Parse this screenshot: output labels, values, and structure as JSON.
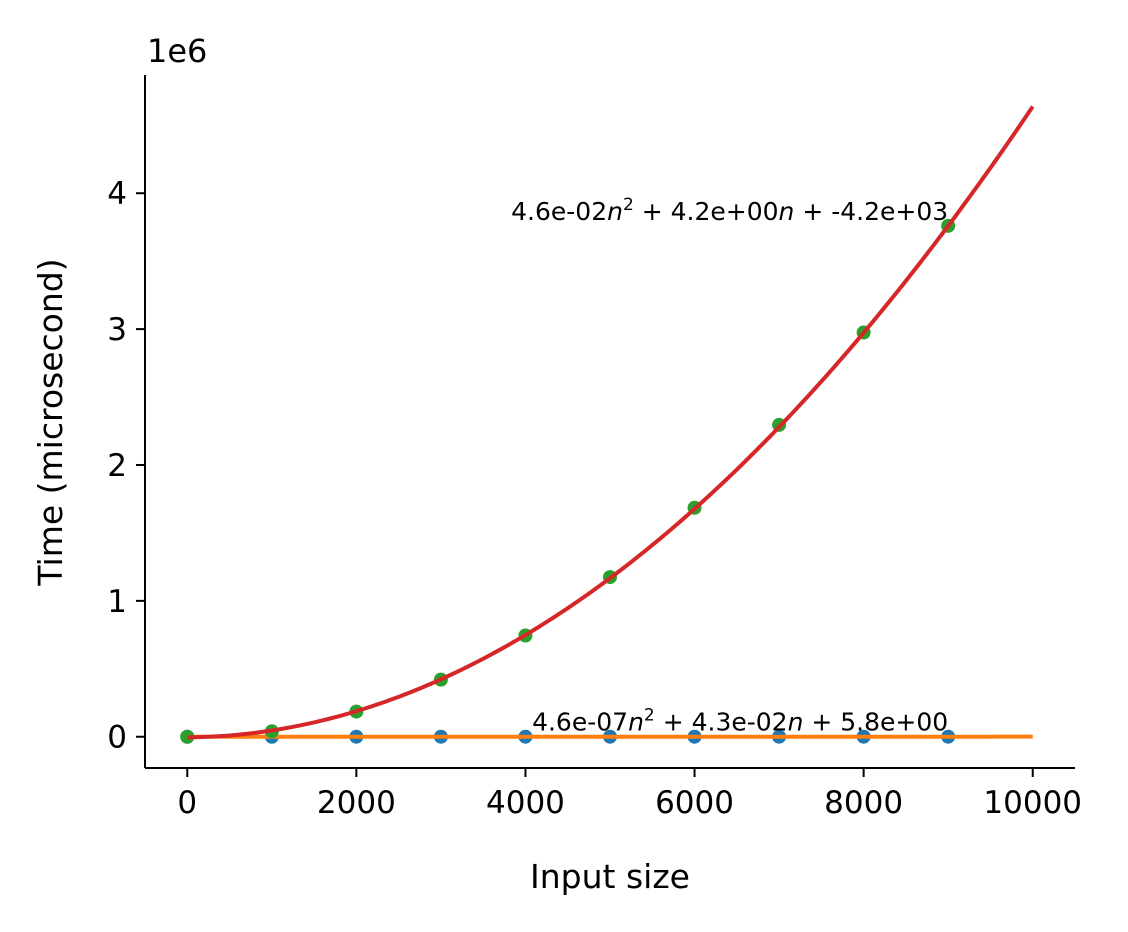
{
  "chart_data": {
    "type": "scatter",
    "title": "",
    "xlabel": "Input size",
    "ylabel": "Time (microsecond)",
    "y_offset_label": "1e6",
    "y_scale_factor": 1000000,
    "xlim": [
      -500,
      10500
    ],
    "ylim": [
      -230000,
      4870000
    ],
    "x_ticks": [
      0,
      2000,
      4000,
      6000,
      8000,
      10000
    ],
    "x_tick_labels": [
      "0",
      "2000",
      "4000",
      "6000",
      "8000",
      "10000"
    ],
    "y_ticks": [
      0,
      1000000,
      2000000,
      3000000,
      4000000
    ],
    "y_tick_labels": [
      "0",
      "1",
      "2",
      "3",
      "4"
    ],
    "grid": false,
    "spines": [
      "left",
      "bottom"
    ],
    "series": [
      {
        "kind": "points",
        "color": "#1f77b4",
        "x": [
          0,
          1000,
          2000,
          3000,
          4000,
          5000,
          6000,
          7000,
          8000,
          9000
        ],
        "y": [
          0,
          50,
          90,
          150,
          200,
          220,
          250,
          320,
          370,
          420
        ]
      },
      {
        "kind": "fit-line",
        "color": "#ff7f0e",
        "coefficients": [
          4.6e-07,
          0.043,
          5.8
        ],
        "x_range": [
          0,
          10000
        ]
      },
      {
        "kind": "points",
        "color": "#2ca02c",
        "x": [
          0,
          1000,
          2000,
          3000,
          4000,
          5000,
          6000,
          7000,
          8000,
          9000
        ],
        "y": [
          0,
          40000,
          185000,
          420000,
          745000,
          1175000,
          1685000,
          2295000,
          2975000,
          3760000
        ]
      },
      {
        "kind": "fit-line",
        "color": "#d62728",
        "coefficients": [
          0.046,
          4.2,
          -4200
        ],
        "x_range": [
          0,
          10000
        ]
      }
    ],
    "annotations": [
      {
        "prefix": "4.6e-02",
        "var": "n",
        "exponent": "2",
        "suffix": " + 4.2e+00",
        "var2": "n",
        "tail": " + -4.2e+03",
        "anchor_x": 9000,
        "anchor_y": 3760000
      },
      {
        "prefix": "4.6e-07",
        "var": "n",
        "exponent": "2",
        "suffix": " + 4.3e-02",
        "var2": "n",
        "tail": " + 5.8e+00",
        "anchor_x": 9000,
        "anchor_y": 0
      }
    ]
  }
}
